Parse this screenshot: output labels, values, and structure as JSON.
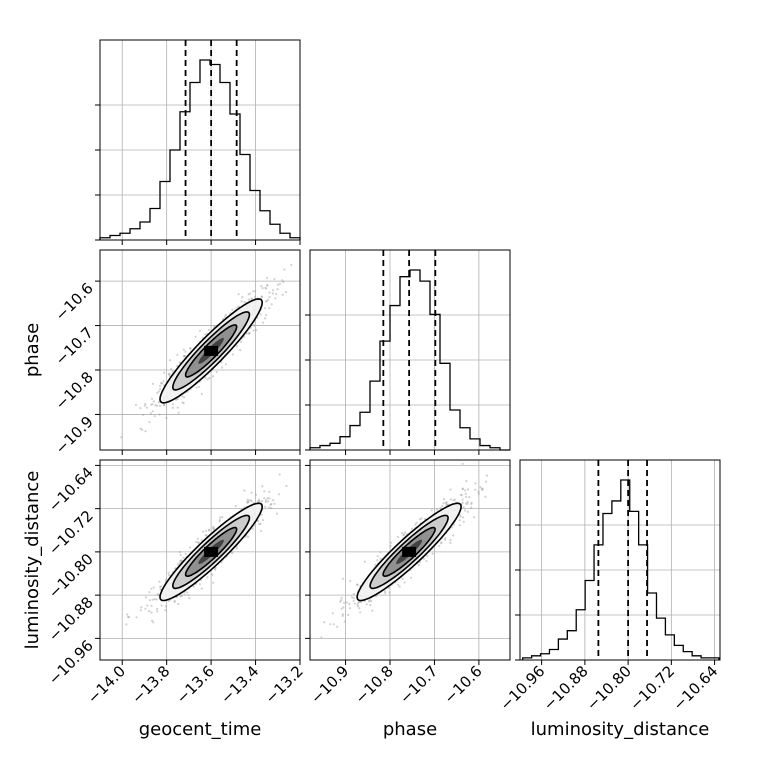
{
  "chart_data": {
    "type": "corner",
    "parameters": [
      "geocent_time",
      "phase",
      "luminosity_distance"
    ],
    "axis_labels": {
      "bottom": [
        "geocent_time",
        "phase",
        "luminosity_distance"
      ],
      "left": [
        "",
        "phase",
        "luminosity_distance"
      ]
    },
    "ranges": {
      "geocent_time": [
        -14.1,
        -13.2
      ],
      "phase": [
        -10.98,
        -10.53
      ],
      "luminosity_distance": [
        -11.0,
        -10.63
      ]
    },
    "ticks": {
      "geocent_time": [
        -14.0,
        -13.8,
        -13.6,
        -13.4,
        -13.2
      ],
      "phase": [
        -10.9,
        -10.8,
        -10.7,
        -10.6
      ],
      "luminosity_distance": [
        -10.96,
        -10.88,
        -10.8,
        -10.72,
        -10.64
      ]
    },
    "tick_labels": {
      "geocent_time": [
        "−14.0",
        "−13.8",
        "−13.6",
        "−13.4",
        "−13.2"
      ],
      "phase": [
        "−10.9",
        "−10.8",
        "−10.7",
        "−10.6"
      ],
      "luminosity_distance": [
        "−10.96",
        "−10.88",
        "−10.80",
        "−10.72",
        "−10.64"
      ]
    },
    "quantiles": {
      "geocent_time": [
        -13.715,
        -13.6,
        -13.485
      ],
      "phase": [
        -10.815,
        -10.757,
        -10.698
      ],
      "luminosity_distance": [
        -10.855,
        -10.8,
        -10.765
      ]
    },
    "histograms": {
      "geocent_time": {
        "edges": [
          -14.1,
          -14.055,
          -14.01,
          -13.965,
          -13.92,
          -13.875,
          -13.83,
          -13.785,
          -13.74,
          -13.695,
          -13.65,
          -13.605,
          -13.56,
          -13.515,
          -13.47,
          -13.425,
          -13.38,
          -13.335,
          -13.29,
          -13.245,
          -13.2
        ],
        "counts": [
          1,
          2,
          3,
          5,
          8,
          14,
          26,
          40,
          57,
          70,
          80,
          78,
          70,
          56,
          38,
          22,
          13,
          7,
          3,
          1
        ]
      },
      "phase": {
        "edges": [
          -10.98,
          -10.9575,
          -10.935,
          -10.9125,
          -10.89,
          -10.8675,
          -10.845,
          -10.8225,
          -10.8,
          -10.7775,
          -10.755,
          -10.7325,
          -10.71,
          -10.6875,
          -10.665,
          -10.6425,
          -10.62,
          -10.5975,
          -10.575,
          -10.5525,
          -10.53
        ],
        "counts": [
          1,
          2,
          3,
          6,
          11,
          17,
          31,
          49,
          65,
          78,
          81,
          76,
          61,
          39,
          18,
          10,
          5,
          2,
          1,
          0
        ]
      },
      "luminosity_distance": {
        "edges": [
          -10.995,
          -10.9785,
          -10.962,
          -10.9455,
          -10.929,
          -10.9125,
          -10.896,
          -10.8795,
          -10.863,
          -10.8465,
          -10.83,
          -10.8135,
          -10.797,
          -10.7805,
          -10.764,
          -10.7475,
          -10.731,
          -10.7145,
          -10.698,
          -10.6815,
          -10.665,
          -10.6485,
          -10.632
        ],
        "counts": [
          1,
          2,
          3,
          5,
          10,
          14,
          24,
          38,
          55,
          70,
          76,
          86,
          71,
          55,
          32,
          20,
          12,
          7,
          4,
          2,
          1,
          1
        ]
      }
    },
    "correlation": 0.93,
    "grid": true
  }
}
